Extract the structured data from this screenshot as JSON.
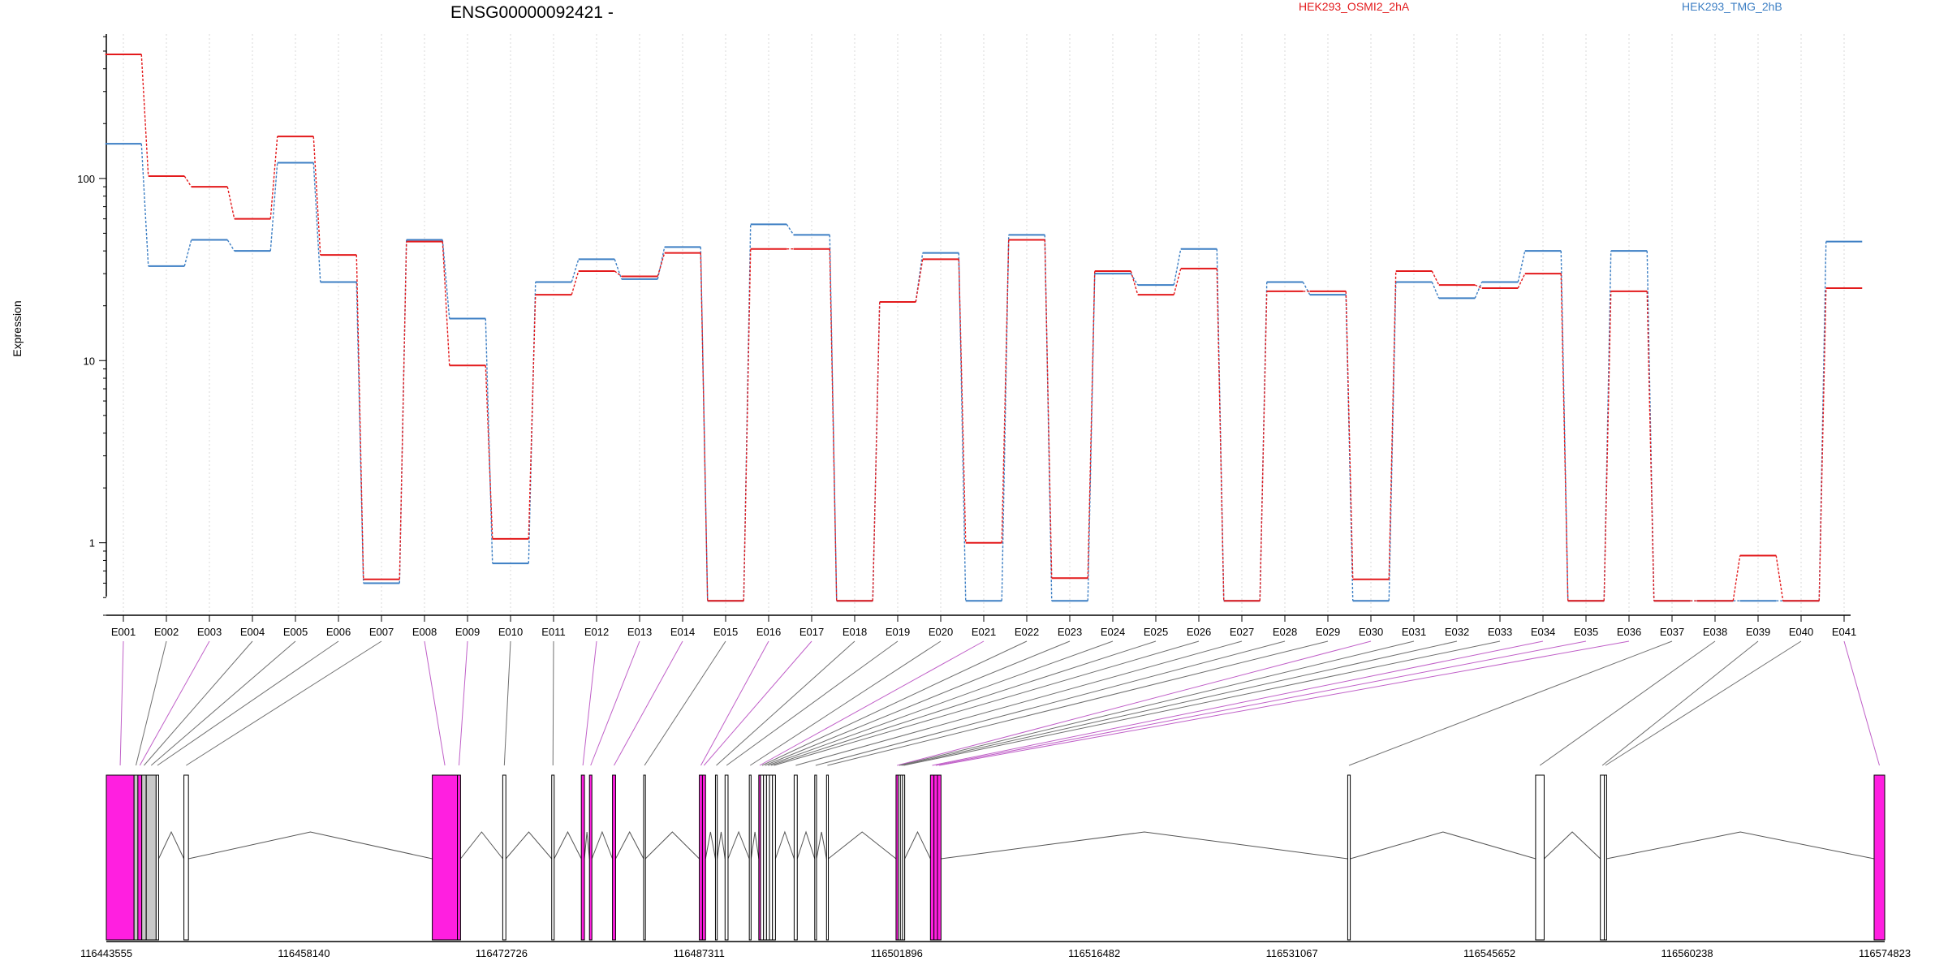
{
  "chart_data": {
    "type": "line",
    "title": "ENSG00000092421 -",
    "ylabel": "Expression",
    "y_scale": "log",
    "ylim": [
      0.4,
      620
    ],
    "yticks": [
      1,
      10,
      100
    ],
    "ytick_labels": [
      "1",
      "10",
      "100"
    ],
    "grid": "vertical dotted",
    "legend_placement": "top",
    "categories": [
      "E001",
      "E002",
      "E003",
      "E004",
      "E005",
      "E006",
      "E007",
      "E008",
      "E009",
      "E010",
      "E011",
      "E012",
      "E013",
      "E014",
      "E015",
      "E016",
      "E017",
      "E018",
      "E019",
      "E020",
      "E021",
      "E022",
      "E023",
      "E024",
      "E025",
      "E026",
      "E027",
      "E028",
      "E029",
      "E030",
      "E031",
      "E032",
      "E033",
      "E034",
      "E035",
      "E036",
      "E037",
      "E038",
      "E039",
      "E040",
      "E041"
    ],
    "series": [
      {
        "name": "HEK293_OSMI2_2hA",
        "color": "#e31a1c",
        "values": [
          480,
          103,
          90,
          60,
          170,
          38,
          0.63,
          45,
          9.4,
          1.05,
          23,
          31,
          29,
          39,
          0.48,
          41,
          41,
          0.48,
          21,
          36,
          1.0,
          46,
          0.64,
          31,
          23,
          32,
          0.48,
          24,
          24,
          0.63,
          31,
          26,
          25,
          30,
          0.48,
          24,
          0.48,
          0.48,
          0.85,
          0.48,
          25
        ]
      },
      {
        "name": "HEK293_TMG_2hB",
        "color": "#3d7fc4",
        "values": [
          155,
          33,
          46,
          40,
          122,
          27,
          0.6,
          46,
          17,
          0.77,
          27,
          36,
          28,
          42,
          0.48,
          56,
          49,
          0.48,
          21,
          39,
          0.48,
          49,
          0.48,
          30,
          26,
          41,
          0.48,
          27,
          23,
          0.48,
          27,
          22,
          27,
          40,
          0.48,
          40,
          0.48,
          0.48,
          0.48,
          0.48,
          45
        ]
      }
    ],
    "gene_model": {
      "coordinate_labels": [
        "116443555",
        "116458140",
        "116472726",
        "116487311",
        "116501896",
        "116516482",
        "116531067",
        "116545652",
        "116560238",
        "116574823"
      ],
      "coord_range": [
        116443555,
        116574823
      ],
      "exons": [
        {
          "id": "E001",
          "start": 116443555,
          "end": 116445601,
          "fill": "magenta"
        },
        {
          "id": "E002",
          "start": 116445601,
          "end": 116445885,
          "fill": "grey"
        },
        {
          "id": "E003",
          "start": 116445885,
          "end": 116446171,
          "fill": "magenta"
        },
        {
          "id": "E004",
          "start": 116446171,
          "end": 116446501,
          "fill": "grey"
        },
        {
          "id": "E005",
          "start": 116446501,
          "end": 116447231,
          "fill": "grey"
        },
        {
          "id": "E006",
          "start": 116447231,
          "end": 116447416,
          "fill": "white"
        },
        {
          "id": "E007",
          "start": 116449281,
          "end": 116449616,
          "fill": "white"
        },
        {
          "id": "E008",
          "start": 116467616,
          "end": 116469471,
          "fill": "magenta"
        },
        {
          "id": "E009",
          "start": 116469471,
          "end": 116469701,
          "fill": "magenta"
        },
        {
          "id": "E010",
          "start": 116472816,
          "end": 116473046,
          "fill": "white"
        },
        {
          "id": "E011",
          "start": 116476431,
          "end": 116476611,
          "fill": "white"
        },
        {
          "id": "E012",
          "start": 116478616,
          "end": 116478846,
          "fill": "magenta"
        },
        {
          "id": "E013",
          "start": 116479216,
          "end": 116479396,
          "fill": "magenta"
        },
        {
          "id": "E014",
          "start": 116480916,
          "end": 116481146,
          "fill": "magenta"
        },
        {
          "id": "E015",
          "start": 116483216,
          "end": 116483346,
          "fill": "white"
        },
        {
          "id": "E016",
          "start": 116487326,
          "end": 116487556,
          "fill": "magenta"
        },
        {
          "id": "E017",
          "start": 116487556,
          "end": 116487786,
          "fill": "magenta"
        },
        {
          "id": "E018",
          "start": 116488516,
          "end": 116488646,
          "fill": "white"
        },
        {
          "id": "E019",
          "start": 116489226,
          "end": 116489446,
          "fill": "white"
        },
        {
          "id": "E020",
          "start": 116491016,
          "end": 116491146,
          "fill": "white"
        },
        {
          "id": "E021",
          "start": 116491716,
          "end": 116491846,
          "fill": "magenta"
        },
        {
          "id": "E022",
          "start": 116491846,
          "end": 116492066,
          "fill": "white"
        },
        {
          "id": "E023",
          "start": 116492066,
          "end": 116492286,
          "fill": "white"
        },
        {
          "id": "E024",
          "start": 116492286,
          "end": 116492506,
          "fill": "white"
        },
        {
          "id": "E025",
          "start": 116492506,
          "end": 116492726,
          "fill": "white"
        },
        {
          "id": "E026",
          "start": 116492726,
          "end": 116492946,
          "fill": "white"
        },
        {
          "id": "E027",
          "start": 116494326,
          "end": 116494556,
          "fill": "white"
        },
        {
          "id": "E028",
          "start": 116495846,
          "end": 116495976,
          "fill": "white"
        },
        {
          "id": "E029",
          "start": 116496716,
          "end": 116496846,
          "fill": "white"
        },
        {
          "id": "E030",
          "start": 116501846,
          "end": 116502006,
          "fill": "magenta"
        },
        {
          "id": "E031",
          "start": 116502006,
          "end": 116502166,
          "fill": "white"
        },
        {
          "id": "E032",
          "start": 116502166,
          "end": 116502326,
          "fill": "white"
        },
        {
          "id": "E033",
          "start": 116502326,
          "end": 116502486,
          "fill": "white"
        },
        {
          "id": "E034",
          "start": 116504386,
          "end": 116504646,
          "fill": "magenta"
        },
        {
          "id": "E035",
          "start": 116504646,
          "end": 116504906,
          "fill": "magenta"
        },
        {
          "id": "E036",
          "start": 116504906,
          "end": 116505166,
          "fill": "magenta"
        },
        {
          "id": "E037",
          "start": 116535186,
          "end": 116535376,
          "fill": "white"
        },
        {
          "id": "E038",
          "start": 116549056,
          "end": 116549686,
          "fill": "white"
        },
        {
          "id": "E039",
          "start": 116553836,
          "end": 116554126,
          "fill": "white"
        },
        {
          "id": "E040",
          "start": 116554126,
          "end": 116554296,
          "fill": "white"
        },
        {
          "id": "E041",
          "start": 116574043,
          "end": 116574823,
          "fill": "magenta"
        }
      ]
    }
  }
}
